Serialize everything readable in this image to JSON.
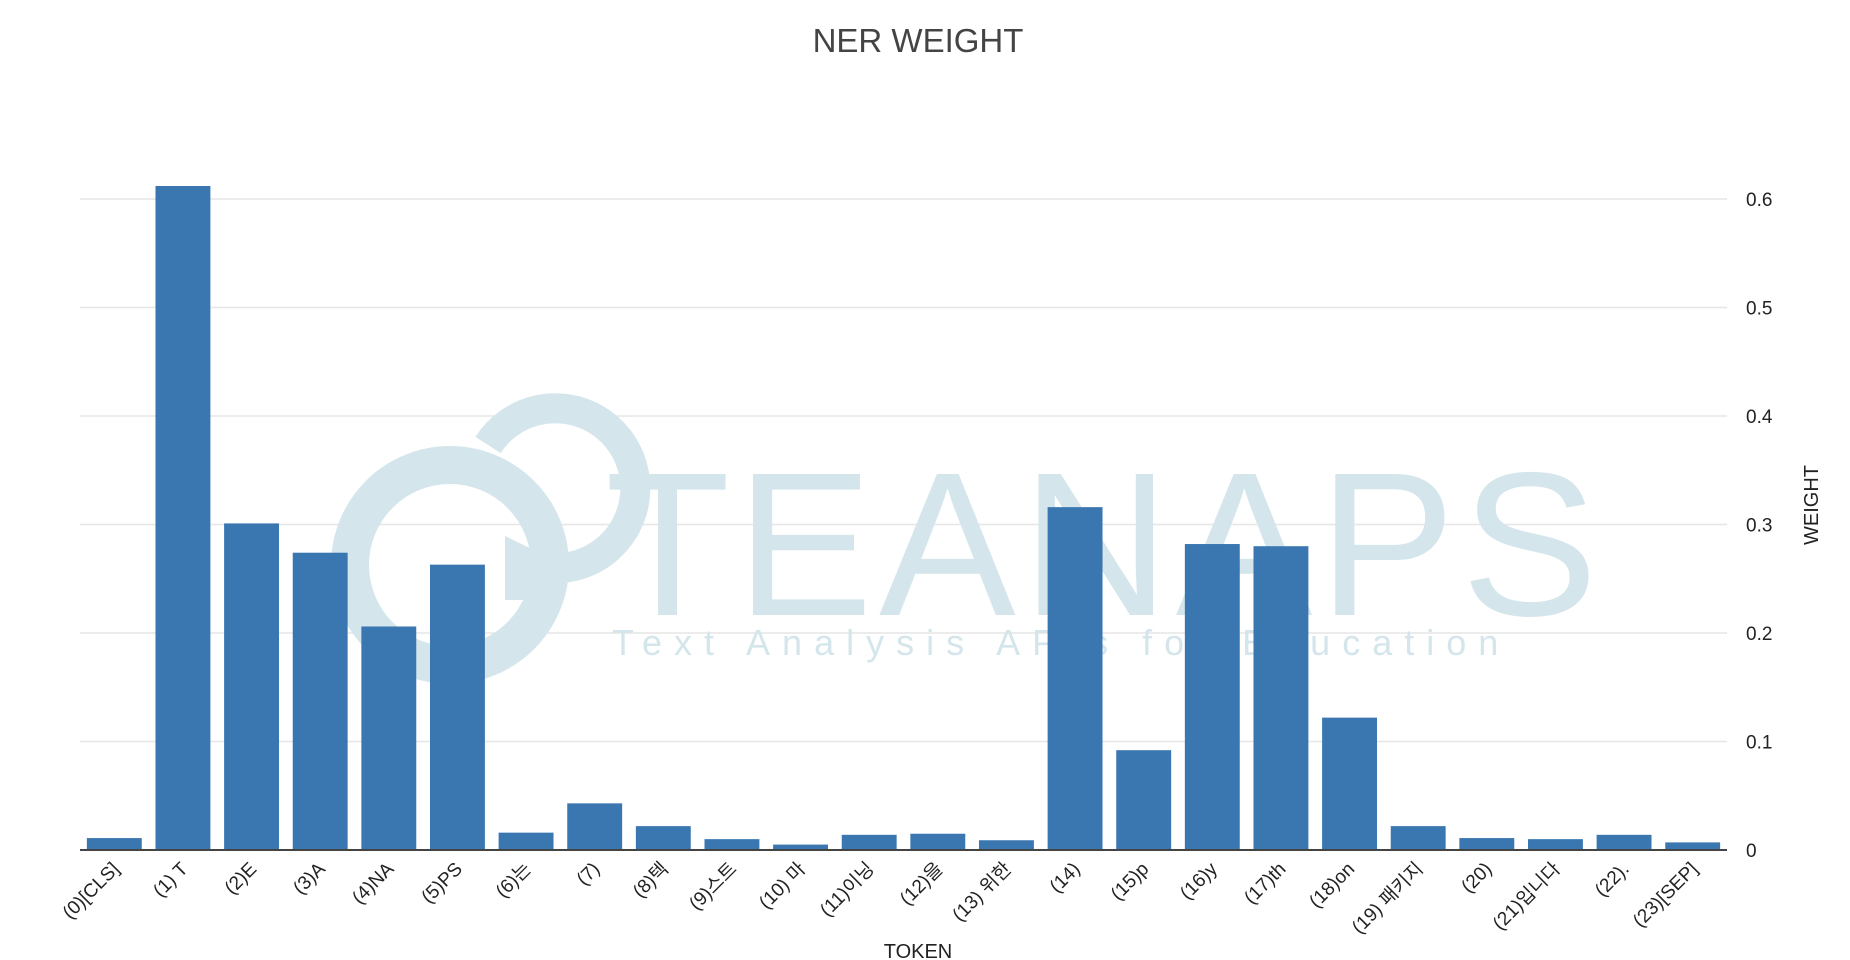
{
  "colors": {
    "bar": "#3a76b0",
    "grid": "#e6e6e6",
    "axis": "#444444",
    "watermark": "#d4e6ec"
  },
  "watermark": {
    "brand": "TEANAPS",
    "tagline": "Text Analysis APIs for Education",
    "icon": "at-sign-logo-icon"
  },
  "chart_data": {
    "type": "bar",
    "title": "NER WEIGHT",
    "xlabel": "TOKEN",
    "ylabel": "WEIGHT",
    "yaxis_side": "right",
    "ylim": [
      0,
      0.65
    ],
    "yticks": [
      0,
      0.1,
      0.2,
      0.3,
      0.4,
      0.5,
      0.6
    ],
    "ytick_labels": [
      "0",
      "0.1",
      "0.2",
      "0.3",
      "0.4",
      "0.5",
      "0.6"
    ],
    "grid": true,
    "categories": [
      "(0)[CLS]",
      "(1) T",
      "(2)E",
      "(3)A",
      "(4)NA",
      "(5)PS",
      "(6)는",
      "(7)",
      "(8)텍",
      "(9)스트",
      "(10) 마",
      "(11)이닝",
      "(12)을",
      "(13) 위한",
      "(14)",
      "(15)p",
      "(16)y",
      "(17)th",
      "(18)on",
      "(19) 패키지",
      "(20)",
      "(21)입니다",
      "(22).",
      "(23)[SEP]"
    ],
    "values": [
      0.011,
      0.612,
      0.301,
      0.274,
      0.206,
      0.263,
      0.016,
      0.043,
      0.022,
      0.01,
      0.005,
      0.014,
      0.015,
      0.009,
      0.316,
      0.092,
      0.282,
      0.28,
      0.122,
      0.022,
      0.011,
      0.01,
      0.014,
      0.007
    ]
  }
}
